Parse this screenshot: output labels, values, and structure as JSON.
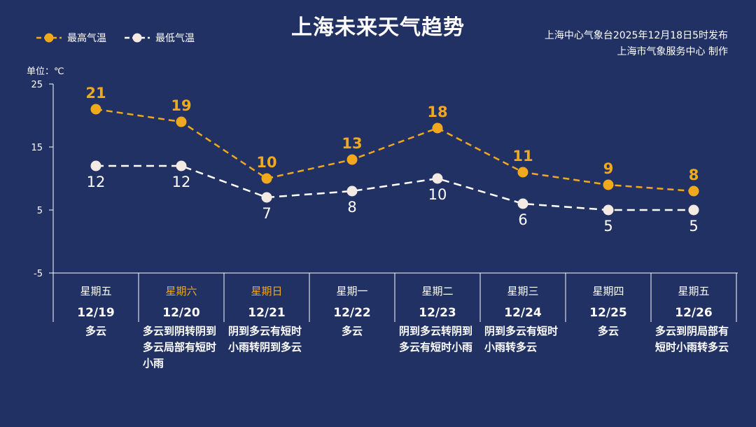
{
  "header": {
    "title": "上海未来天气趋势",
    "source_line1": "上海中心气象台2025年12月18日5时发布",
    "source_line2": "上海市气象服务中心  制作"
  },
  "legend": {
    "high_label": "最高气温",
    "low_label": "最低气温"
  },
  "unit_label": "单位：℃",
  "colors": {
    "background": "#223163",
    "high": "#f0a81c",
    "low": "#ffffff",
    "low_marker": "#f3ebe3"
  },
  "chart_data": {
    "type": "line",
    "title": "上海未来天气趋势",
    "ylabel": "单位：℃",
    "ylim": [
      -5,
      25
    ],
    "yticks": [
      -5,
      5,
      15,
      25
    ],
    "categories": [
      "12/19",
      "12/20",
      "12/21",
      "12/22",
      "12/23",
      "12/24",
      "12/25",
      "12/26"
    ],
    "weekdays": [
      "星期五",
      "星期六",
      "星期日",
      "星期一",
      "星期二",
      "星期三",
      "星期四",
      "星期五"
    ],
    "weekend": [
      false,
      true,
      true,
      false,
      false,
      false,
      false,
      false
    ],
    "series": [
      {
        "name": "最高气温",
        "values": [
          21,
          19,
          10,
          13,
          18,
          11,
          9,
          8
        ]
      },
      {
        "name": "最低气温",
        "values": [
          12,
          12,
          7,
          8,
          10,
          6,
          5,
          5
        ]
      }
    ],
    "weather": [
      "多云",
      "多云到阴转阴到多云局部有短时小雨",
      "阴到多云有短时小雨转阴到多云",
      "多云",
      "阴到多云转阴到多云有短时小雨",
      "阴到多云有短时小雨转多云",
      "多云",
      "多云到阴局部有短时小雨转多云"
    ]
  }
}
